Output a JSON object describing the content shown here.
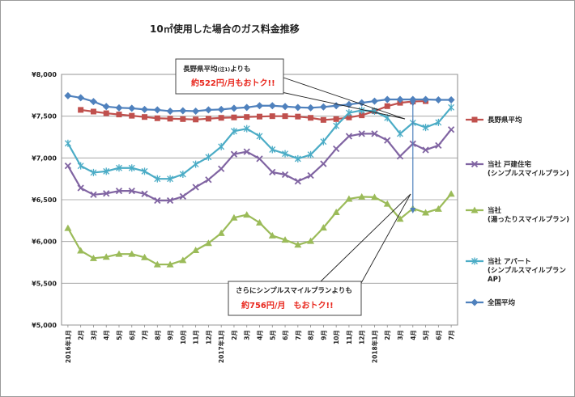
{
  "chart_data": {
    "type": "line",
    "title": "10㎡使用した場合のガス料金推移",
    "ylim": [
      5000,
      8000
    ],
    "y_ticks": [
      "¥5,000",
      "¥5,500",
      "¥6,000",
      "¥6,500",
      "¥7,000",
      "¥7,500",
      "¥8,000"
    ],
    "y_tick_values": [
      5000,
      5500,
      6000,
      6500,
      7000,
      7500,
      8000
    ],
    "x_labels": [
      "2016年1月",
      "2月",
      "3月",
      "4月",
      "5月",
      "6月",
      "7月",
      "8月",
      "9月",
      "10月",
      "11月",
      "12月",
      "2017年1月",
      "2月",
      "3月",
      "4月",
      "5月",
      "6月",
      "7月",
      "8月",
      "9月",
      "10月",
      "11月",
      "12月",
      "2018年1月",
      "2月",
      "3月",
      "4月",
      "5月",
      "6月",
      "7月"
    ],
    "grid": true,
    "legend_position": "right",
    "series": [
      {
        "name": "長野県平均",
        "color": "#c0504d",
        "marker": "square",
        "start_index": 1,
        "values": [
          7575,
          7555,
          7535,
          7520,
          7505,
          7490,
          7475,
          7470,
          7465,
          7460,
          7470,
          7480,
          7485,
          7490,
          7495,
          7500,
          7500,
          7495,
          7480,
          7455,
          7465,
          7485,
          7510,
          7560,
          7620,
          7660,
          7675,
          7680
        ]
      },
      {
        "name_lines": [
          "当社 戸建住宅",
          "(シンプルスマイルプラン)"
        ],
        "color": "#8064a2",
        "marker": "x",
        "start_index": 0,
        "values": [
          6905,
          6640,
          6560,
          6575,
          6605,
          6605,
          6570,
          6490,
          6490,
          6540,
          6650,
          6740,
          6870,
          7045,
          7075,
          6990,
          6830,
          6800,
          6720,
          6790,
          6930,
          7110,
          7260,
          7290,
          7290,
          7210,
          7020,
          7170,
          7095,
          7150,
          7340
        ]
      },
      {
        "name_lines": [
          "当社",
          "(湯ったりスマイルプラン)"
        ],
        "color": "#9bbb59",
        "marker": "triangle",
        "start_index": 0,
        "values": [
          6160,
          5890,
          5800,
          5815,
          5850,
          5850,
          5810,
          5725,
          5725,
          5775,
          5895,
          5980,
          6100,
          6285,
          6320,
          6225,
          6070,
          6020,
          5960,
          6005,
          6165,
          6350,
          6510,
          6535,
          6530,
          6450,
          6270,
          6395,
          6345,
          6390,
          6570
        ]
      },
      {
        "name_lines": [
          "当社 アパート",
          "(シンプルスマイルプラン",
          "AP)"
        ],
        "color": "#4bacc6",
        "marker": "asterisk",
        "start_index": 0,
        "values": [
          7175,
          6905,
          6825,
          6840,
          6880,
          6880,
          6840,
          6750,
          6750,
          6805,
          6925,
          7010,
          7135,
          7320,
          7350,
          7260,
          7100,
          7050,
          6990,
          7040,
          7195,
          7385,
          7540,
          7570,
          7560,
          7480,
          7290,
          7420,
          7365,
          7425,
          7605
        ]
      },
      {
        "name": "全国平均",
        "color": "#4f81bd",
        "marker": "diamond",
        "start_index": 0,
        "values": [
          7745,
          7720,
          7675,
          7615,
          7600,
          7595,
          7580,
          7575,
          7560,
          7565,
          7560,
          7575,
          7580,
          7595,
          7605,
          7625,
          7625,
          7615,
          7605,
          7600,
          7610,
          7625,
          7640,
          7660,
          7680,
          7700,
          7700,
          7700,
          7700,
          7695,
          7695
        ]
      }
    ],
    "callouts": [
      {
        "line1": "長野県平均",
        "line1_note": "(注1)",
        "line1_tail": "よりも",
        "highlight": "約522円/月もおトク!!"
      },
      {
        "line1": "さらにシンプルスマイルプランよりも",
        "highlight": "約756円/月　もおトク!!"
      }
    ]
  }
}
